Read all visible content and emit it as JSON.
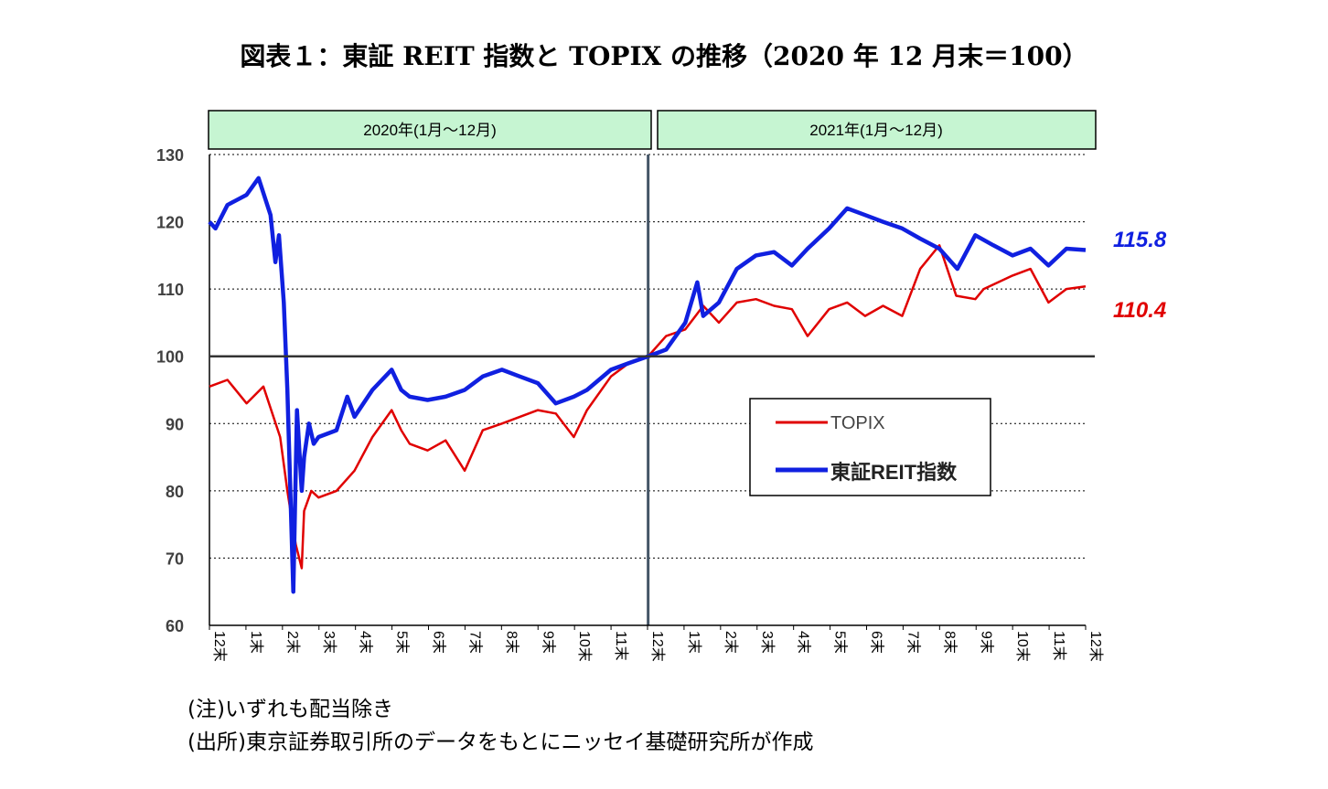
{
  "title": "図表１：東証 REIT 指数と TOPIX の推移（2020 年 12 月末＝100）",
  "periods": [
    "2020年(1月～12月)",
    "2021年(1月～12月)"
  ],
  "notes": [
    "(注)いずれも配当除き",
    "(出所)東京証券取引所のデータをもとにニッセイ基礎研究所が作成"
  ],
  "colors": {
    "topix": "#e00000",
    "reit": "#1020e0",
    "header_fill": "#c6f5d2"
  },
  "chart_data": {
    "type": "line",
    "ylim": [
      60,
      130
    ],
    "yticks": [
      60,
      70,
      80,
      90,
      100,
      110,
      120,
      130
    ],
    "grid": "dotted-horizontal",
    "baseline": 100,
    "x_range": [
      "2019-12-31",
      "2021-12-31"
    ],
    "xtick_labels": [
      "12末",
      "1末",
      "2末",
      "3末",
      "4末",
      "5末",
      "6末",
      "7末",
      "8末",
      "9末",
      "10末",
      "11末",
      "12末",
      "1末",
      "2末",
      "3末",
      "4末",
      "5末",
      "6末",
      "7末",
      "8末",
      "9末",
      "10末",
      "11末",
      "12末"
    ],
    "legend": "center-right",
    "series": [
      {
        "name": "TOPIX",
        "color": "#e00000",
        "final_label": "110.4",
        "x": [
          "2019-12-31",
          "2020-01-15",
          "2020-01-31",
          "2020-02-14",
          "2020-02-28",
          "2020-03-05",
          "2020-03-12",
          "2020-03-17",
          "2020-03-19",
          "2020-03-25",
          "2020-03-31",
          "2020-04-15",
          "2020-04-30",
          "2020-05-15",
          "2020-05-31",
          "2020-06-08",
          "2020-06-15",
          "2020-06-30",
          "2020-07-15",
          "2020-07-31",
          "2020-08-15",
          "2020-08-31",
          "2020-09-15",
          "2020-09-30",
          "2020-10-15",
          "2020-10-30",
          "2020-11-10",
          "2020-11-30",
          "2020-12-15",
          "2020-12-31",
          "2021-01-15",
          "2021-01-31",
          "2021-02-15",
          "2021-02-28",
          "2021-03-15",
          "2021-03-31",
          "2021-04-15",
          "2021-04-30",
          "2021-05-13",
          "2021-05-31",
          "2021-06-15",
          "2021-06-30",
          "2021-07-15",
          "2021-07-31",
          "2021-08-15",
          "2021-08-31",
          "2021-09-14",
          "2021-09-30",
          "2021-10-07",
          "2021-10-31",
          "2021-11-15",
          "2021-11-30",
          "2021-12-15",
          "2021-12-31"
        ],
        "values": [
          95.5,
          96.5,
          93.0,
          95.5,
          88.0,
          80.0,
          72.0,
          68.5,
          77.0,
          80.0,
          79.0,
          80.0,
          83.0,
          88.0,
          92.0,
          89.0,
          87.0,
          86.0,
          87.5,
          83.0,
          89.0,
          90.0,
          91.0,
          92.0,
          91.5,
          88.0,
          92.0,
          97.0,
          99.0,
          100.0,
          103.0,
          104.0,
          107.5,
          105.0,
          108.0,
          108.5,
          107.5,
          107.0,
          103.0,
          107.0,
          108.0,
          106.0,
          107.5,
          106.0,
          113.0,
          116.5,
          109.0,
          108.5,
          110.0,
          112.0,
          113.0,
          108.0,
          110.0,
          110.4
        ]
      },
      {
        "name": "東証REIT指数",
        "color": "#1020e0",
        "final_label": "115.8",
        "x": [
          "2019-12-31",
          "2020-01-05",
          "2020-01-15",
          "2020-01-31",
          "2020-02-10",
          "2020-02-20",
          "2020-02-24",
          "2020-02-27",
          "2020-03-02",
          "2020-03-05",
          "2020-03-10",
          "2020-03-13",
          "2020-03-17",
          "2020-03-19",
          "2020-03-23",
          "2020-03-27",
          "2020-03-31",
          "2020-04-15",
          "2020-04-24",
          "2020-04-30",
          "2020-05-15",
          "2020-05-31",
          "2020-06-08",
          "2020-06-15",
          "2020-06-30",
          "2020-07-15",
          "2020-07-31",
          "2020-08-15",
          "2020-08-31",
          "2020-09-15",
          "2020-09-30",
          "2020-10-15",
          "2020-10-30",
          "2020-11-10",
          "2020-11-30",
          "2020-12-15",
          "2020-12-31",
          "2021-01-15",
          "2021-01-31",
          "2021-02-10",
          "2021-02-15",
          "2021-02-28",
          "2021-03-15",
          "2021-03-31",
          "2021-04-15",
          "2021-04-30",
          "2021-05-13",
          "2021-05-31",
          "2021-06-15",
          "2021-06-30",
          "2021-07-15",
          "2021-07-31",
          "2021-08-15",
          "2021-08-31",
          "2021-09-15",
          "2021-09-30",
          "2021-10-15",
          "2021-10-31",
          "2021-11-15",
          "2021-11-30",
          "2021-12-15",
          "2021-12-31"
        ],
        "values": [
          120.0,
          119.0,
          122.5,
          124.0,
          126.5,
          121.0,
          114.0,
          118.0,
          108.0,
          95.0,
          65.0,
          92.0,
          80.0,
          85.0,
          90.0,
          87.0,
          88.0,
          89.0,
          94.0,
          91.0,
          95.0,
          98.0,
          95.0,
          94.0,
          93.5,
          94.0,
          95.0,
          97.0,
          98.0,
          97.0,
          96.0,
          93.0,
          94.0,
          95.0,
          98.0,
          99.0,
          100.0,
          101.0,
          105.0,
          111.0,
          106.0,
          108.0,
          113.0,
          115.0,
          115.5,
          113.5,
          116.0,
          119.0,
          122.0,
          121.0,
          120.0,
          119.0,
          117.5,
          116.0,
          113.0,
          118.0,
          116.5,
          115.0,
          116.0,
          113.5,
          116.0,
          115.8
        ]
      }
    ]
  }
}
